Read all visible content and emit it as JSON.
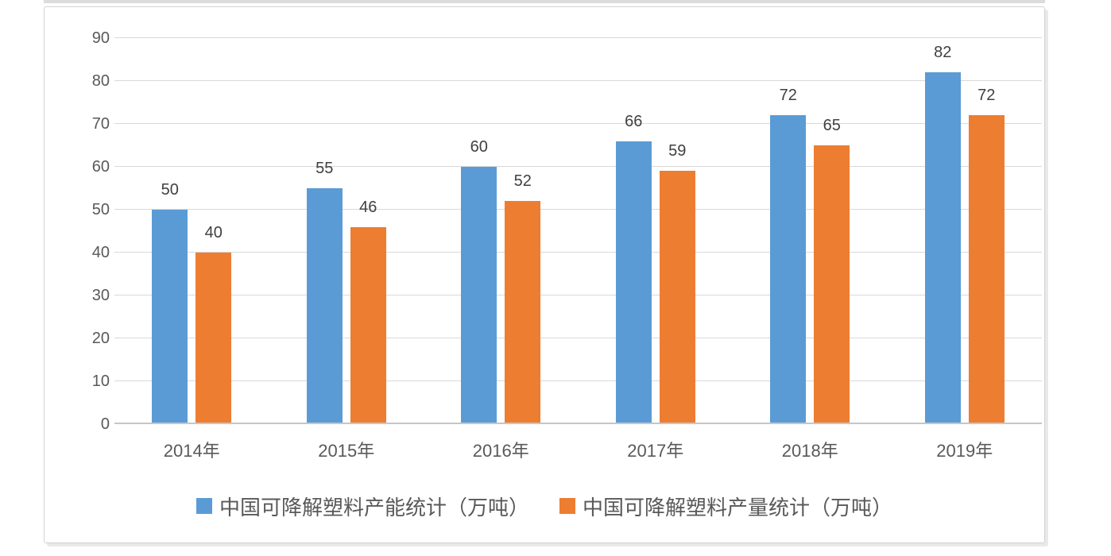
{
  "chart_data": {
    "type": "bar",
    "categories": [
      "2014年",
      "2015年",
      "2016年",
      "2017年",
      "2018年",
      "2019年"
    ],
    "series": [
      {
        "name": "中国可降解塑料产能统计（万吨）",
        "color": "#5B9BD5",
        "values": [
          50,
          55,
          60,
          66,
          72,
          82
        ]
      },
      {
        "name": "中国可降解塑料产量统计（万吨）",
        "color": "#ED7D31",
        "values": [
          40,
          46,
          52,
          59,
          65,
          72
        ]
      }
    ],
    "title": "",
    "xlabel": "",
    "ylabel": "",
    "ylim": [
      0,
      90
    ],
    "yticks": [
      0,
      10,
      20,
      30,
      40,
      50,
      60,
      70,
      80,
      90
    ],
    "grid": true,
    "data_labels": true,
    "legend_position": "bottom"
  },
  "colors": {
    "series1": "#5B9BD5",
    "series2": "#ED7D31",
    "gridline": "#D9D9D9",
    "axis_line": "#C6C6C6",
    "axis_text": "#595959",
    "data_label_text": "#404040",
    "frame_border": "#D2D2D2",
    "background": "#FFFFFF"
  }
}
